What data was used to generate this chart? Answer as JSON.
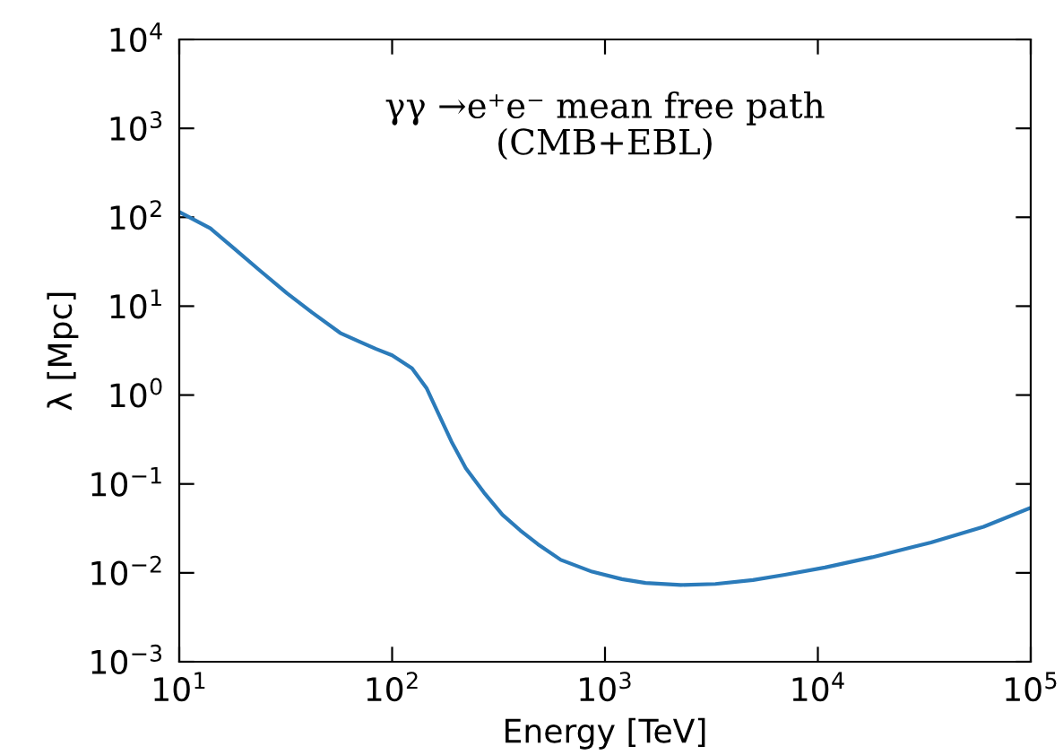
{
  "chart_data": {
    "type": "line",
    "xlabel": "Energy [TeV]",
    "ylabel": "λ [Mpc]",
    "log": "xy",
    "grid": false,
    "legend": false,
    "marker": "none",
    "line_style": "solid",
    "annotations": [
      "γγ →e⁺e⁻ mean free path\n(CMB+EBL)"
    ],
    "xlim": [
      10,
      100000
    ],
    "ylim": [
      0.001,
      10000
    ],
    "xticks": [
      {
        "value": 10,
        "label": "10$^{1}$"
      },
      {
        "value": 100,
        "label": "10$^{2}$"
      },
      {
        "value": 1000,
        "label": "10$^{3}$"
      },
      {
        "value": 10000,
        "label": "10$^{4}$"
      },
      {
        "value": 100000,
        "label": "10$^{5}$"
      }
    ],
    "yticks": [
      {
        "value": 0.001,
        "label": "10$^{−3}$"
      },
      {
        "value": 0.01,
        "label": "10$^{−2}$"
      },
      {
        "value": 0.1,
        "label": "10$^{−1}$"
      },
      {
        "value": 1,
        "label": "10$^{0}$"
      },
      {
        "value": 10,
        "label": "10$^{1}$"
      },
      {
        "value": 100,
        "label": "10$^{2}$"
      },
      {
        "value": 1000,
        "label": "10$^{3}$"
      },
      {
        "value": 10000,
        "label": "10$^{4}$"
      }
    ],
    "series": [
      {
        "color": "#2b7bba",
        "x": [
          10,
          14,
          18,
          24,
          32,
          42,
          57,
          70,
          84,
          100,
          124,
          145,
          166,
          190,
          222,
          270,
          330,
          400,
          484,
          620,
          870,
          1200,
          1550,
          2270,
          3300,
          4960,
          7000,
          10800,
          18000,
          34000,
          60000,
          100000
        ],
        "values": [
          115,
          75,
          45,
          25,
          14,
          8.5,
          5.0,
          4.0,
          3.3,
          2.8,
          2.0,
          1.2,
          0.6,
          0.3,
          0.15,
          0.08,
          0.045,
          0.03,
          0.021,
          0.014,
          0.0103,
          0.0085,
          0.0077,
          0.0073,
          0.0075,
          0.0083,
          0.0095,
          0.0115,
          0.015,
          0.022,
          0.033,
          0.054
        ]
      }
    ]
  }
}
